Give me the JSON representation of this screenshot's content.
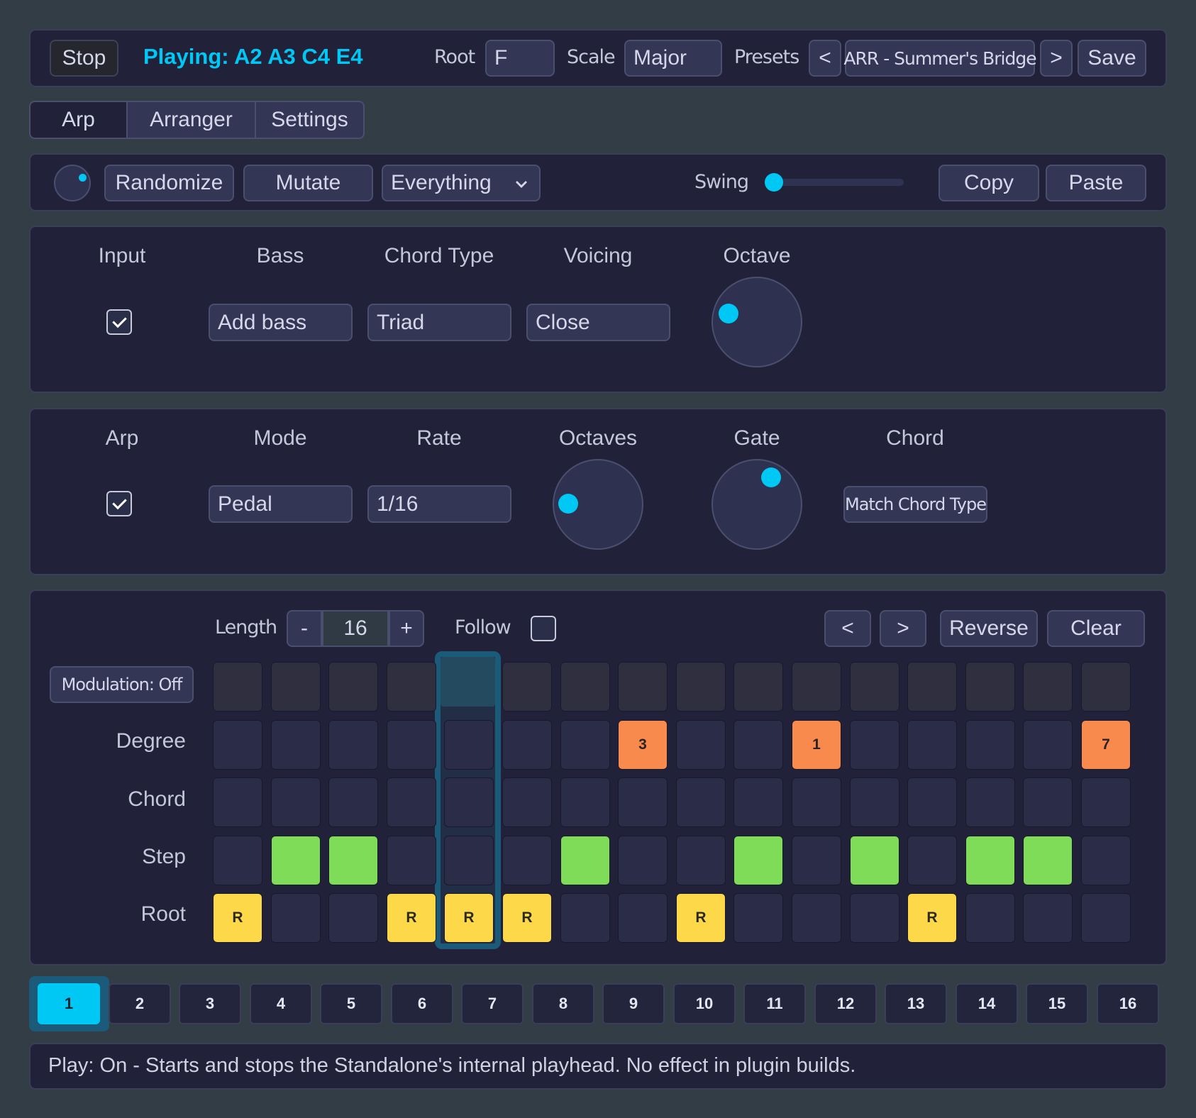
{
  "transport": {
    "stop_label": "Stop",
    "playing_text": "Playing: A2 A3 C4 E4",
    "root_label": "Root",
    "root_value": "F",
    "scale_label": "Scale",
    "scale_value": "Major",
    "presets_label": "Presets",
    "prev_label": "<",
    "preset_name": "ARR - Summer's Bridge",
    "next_label": ">",
    "save_label": "Save"
  },
  "tabs": [
    {
      "label": "Arp",
      "active": true
    },
    {
      "label": "Arranger",
      "active": false
    },
    {
      "label": "Settings",
      "active": false
    }
  ],
  "toolbar": {
    "randomize_label": "Randomize",
    "mutate_label": "Mutate",
    "target_value": "Everything",
    "swing_label": "Swing",
    "swing_value": 0,
    "copy_label": "Copy",
    "paste_label": "Paste"
  },
  "chord_panel": {
    "input_label": "Input",
    "input_checked": true,
    "bass_label": "Bass",
    "bass_value": "Add bass",
    "chord_type_label": "Chord Type",
    "chord_type_value": "Triad",
    "voicing_label": "Voicing",
    "voicing_value": "Close",
    "octave_label": "Octave"
  },
  "arp_panel": {
    "arp_label": "Arp",
    "arp_checked": true,
    "mode_label": "Mode",
    "mode_value": "Pedal",
    "rate_label": "Rate",
    "rate_value": "1/16",
    "octaves_label": "Octaves",
    "gate_label": "Gate",
    "chord_label": "Chord",
    "chord_value": "Match Chord Type"
  },
  "sequencer": {
    "length_label": "Length",
    "minus_label": "-",
    "length_value": "16",
    "plus_label": "+",
    "follow_label": "Follow",
    "follow_checked": false,
    "shift_left_label": "<",
    "shift_right_label": ">",
    "reverse_label": "Reverse",
    "clear_label": "Clear",
    "modulation_label": "Modulation: Off",
    "row_labels": [
      "Degree",
      "Chord",
      "Step",
      "Root"
    ],
    "playhead_step": 5,
    "degree": [
      "",
      "",
      "",
      "",
      "",
      "",
      "",
      "3",
      "",
      "",
      "1",
      "",
      "",
      "",
      "",
      "7"
    ],
    "chord": [
      "",
      "",
      "",
      "",
      "",
      "",
      "",
      "",
      "",
      "",
      "",
      "",
      "",
      "",
      "",
      ""
    ],
    "step": [
      false,
      true,
      true,
      false,
      false,
      false,
      true,
      false,
      false,
      true,
      false,
      true,
      false,
      true,
      true,
      false
    ],
    "root": [
      "R",
      "",
      "",
      "R",
      "R",
      "R",
      "",
      "",
      "R",
      "",
      "",
      "",
      "R",
      "",
      "",
      ""
    ],
    "colors": {
      "degree": "#f78a4c",
      "step": "#7fdc58",
      "root": "#fdd94a",
      "accent": "#00c8f5"
    }
  },
  "patterns": {
    "labels": [
      "1",
      "2",
      "3",
      "4",
      "5",
      "6",
      "7",
      "8",
      "9",
      "10",
      "11",
      "12",
      "13",
      "14",
      "15",
      "16"
    ],
    "active": 1
  },
  "status": {
    "text": "Play: On - Starts and stops the Standalone's internal playhead. No effect in plugin builds."
  }
}
